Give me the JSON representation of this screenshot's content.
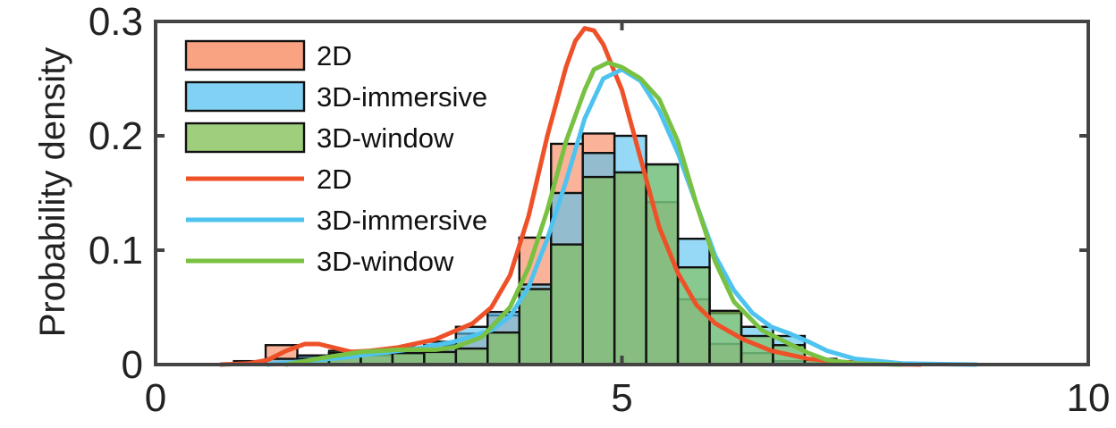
{
  "chart_data": {
    "type": "bar",
    "title": "",
    "xlabel": "",
    "ylabel": "Probability density",
    "xlim": [
      0,
      10
    ],
    "ylim": [
      0,
      0.3
    ],
    "x_ticks": [
      "0",
      "5",
      "10"
    ],
    "y_ticks": [
      "0",
      "0.1",
      "0.2",
      "0.3"
    ],
    "bin_edges": [
      0.5,
      0.84,
      1.18,
      1.52,
      1.86,
      2.2,
      2.54,
      2.88,
      3.22,
      3.56,
      3.9,
      4.24,
      4.58,
      4.92,
      5.26,
      5.6,
      5.94,
      6.28,
      6.62,
      6.96,
      7.3,
      7.64,
      7.98,
      8.32
    ],
    "histograms": [
      {
        "name": "2D",
        "color": "#f7845a",
        "values": [
          0,
          0.003,
          0.017,
          0.007,
          0.01,
          0.008,
          0.012,
          0.017,
          0.027,
          0.043,
          0.111,
          0.193,
          0.202,
          0.168,
          0.142,
          0.057,
          0.018,
          0.01,
          0.003,
          0.001,
          0,
          0,
          0
        ]
      },
      {
        "name": "3D-immersive",
        "color": "#55c1f0",
        "values": [
          0,
          0,
          0.005,
          0.008,
          0.012,
          0.01,
          0.015,
          0.02,
          0.033,
          0.046,
          0.07,
          0.15,
          0.185,
          0.2,
          0.175,
          0.11,
          0.045,
          0.033,
          0.025,
          0.005,
          0.003,
          0.002,
          0
        ]
      },
      {
        "name": "3D-window",
        "color": "#7fbf50",
        "values": [
          0,
          0,
          0,
          0.005,
          0.01,
          0.01,
          0.01,
          0.011,
          0.014,
          0.028,
          0.066,
          0.105,
          0.164,
          0.168,
          0.175,
          0.085,
          0.047,
          0.025,
          0.017,
          0.004,
          0.002,
          0,
          0
        ]
      }
    ],
    "density_curves": [
      {
        "name": "2D",
        "color": "#ee5128",
        "x": [
          0.7,
          1.0,
          1.2,
          1.4,
          1.6,
          1.75,
          1.9,
          2.1,
          2.3,
          2.6,
          3.0,
          3.4,
          3.6,
          3.8,
          4.0,
          4.2,
          4.4,
          4.5,
          4.6,
          4.7,
          4.8,
          5.0,
          5.2,
          5.4,
          5.6,
          5.8,
          6.0,
          6.3,
          6.6,
          7.0,
          7.4,
          7.8,
          8.2
        ],
        "y": [
          0,
          0.001,
          0.004,
          0.012,
          0.018,
          0.018,
          0.015,
          0.011,
          0.012,
          0.015,
          0.022,
          0.036,
          0.05,
          0.078,
          0.13,
          0.2,
          0.26,
          0.283,
          0.294,
          0.292,
          0.28,
          0.24,
          0.18,
          0.12,
          0.08,
          0.052,
          0.036,
          0.022,
          0.012,
          0.005,
          0.002,
          0.0005,
          0
        ]
      },
      {
        "name": "3D-immersive",
        "color": "#4fc3ef",
        "x": [
          1.2,
          1.6,
          2.0,
          2.4,
          2.8,
          3.2,
          3.6,
          3.8,
          4.0,
          4.2,
          4.4,
          4.6,
          4.8,
          5.0,
          5.2,
          5.4,
          5.6,
          5.8,
          6.0,
          6.2,
          6.4,
          6.6,
          6.8,
          7.0,
          7.2,
          7.5,
          8.0,
          8.5,
          8.8
        ],
        "y": [
          0,
          0.003,
          0.006,
          0.01,
          0.014,
          0.02,
          0.03,
          0.042,
          0.068,
          0.11,
          0.16,
          0.215,
          0.25,
          0.258,
          0.248,
          0.222,
          0.185,
          0.14,
          0.095,
          0.065,
          0.045,
          0.033,
          0.027,
          0.02,
          0.012,
          0.005,
          0.001,
          0.0003,
          0
        ]
      },
      {
        "name": "3D-window",
        "color": "#79c142",
        "x": [
          1.4,
          1.8,
          2.2,
          2.6,
          3.0,
          3.2,
          3.5,
          3.8,
          4.0,
          4.2,
          4.4,
          4.6,
          4.7,
          4.85,
          5.0,
          5.2,
          5.4,
          5.6,
          5.8,
          6.0,
          6.2,
          6.5,
          6.8,
          7.0,
          7.2,
          7.5,
          8.0
        ],
        "y": [
          0,
          0.006,
          0.011,
          0.013,
          0.013,
          0.015,
          0.024,
          0.05,
          0.085,
          0.135,
          0.195,
          0.24,
          0.258,
          0.264,
          0.26,
          0.25,
          0.232,
          0.195,
          0.14,
          0.09,
          0.055,
          0.03,
          0.018,
          0.01,
          0.004,
          0.001,
          0
        ]
      }
    ],
    "legend": {
      "position": "top-left",
      "entries": [
        {
          "label": "2D",
          "kind": "patch",
          "color": "#f7845a"
        },
        {
          "label": "3D-immersive",
          "kind": "patch",
          "color": "#55c1f0"
        },
        {
          "label": "3D-window",
          "kind": "patch",
          "color": "#7fbf50"
        },
        {
          "label": "2D",
          "kind": "line",
          "color": "#ee5128"
        },
        {
          "label": "3D-immersive",
          "kind": "line",
          "color": "#4fc3ef"
        },
        {
          "label": "3D-window",
          "kind": "line",
          "color": "#79c142"
        }
      ]
    },
    "grid": false,
    "box": true
  }
}
